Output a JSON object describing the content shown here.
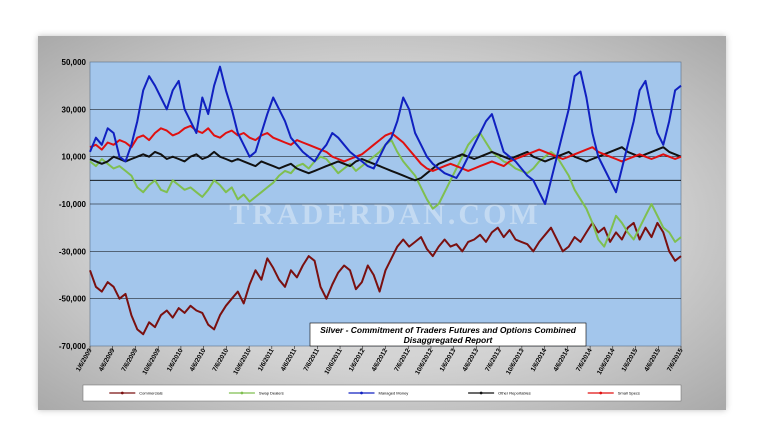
{
  "chart_data": {
    "type": "line",
    "title_line1": "Silver - Commitment of Traders Futures and Options Combined",
    "title_line2": "Disaggregated Report",
    "watermark": "TRADERDAN.COM",
    "ylim": [
      -70000,
      50000
    ],
    "y_ticks": [
      50000,
      30000,
      10000,
      -10000,
      -30000,
      -50000,
      -70000
    ],
    "y_tick_labels": [
      "50,000",
      "30,000",
      "10,000",
      "-10,000",
      "-30,000",
      "-50,000",
      "-70,000"
    ],
    "x_tick_labels": [
      "1/6/2009",
      "4/6/2009",
      "7/6/2009",
      "10/6/2009",
      "1/6/2010",
      "4/6/2010",
      "7/6/2010",
      "10/6/2010",
      "1/6/2011",
      "4/6/2011",
      "7/6/2011",
      "10/6/2011",
      "1/6/2012",
      "4/6/2012",
      "7/6/2012",
      "10/6/2012",
      "1/6/2013",
      "4/6/2013",
      "7/6/2013",
      "10/6/2013",
      "1/6/2014",
      "4/6/2014",
      "7/6/2014",
      "10/6/2014",
      "1/6/2015",
      "4/6/2015",
      "7/6/2015"
    ],
    "series": [
      {
        "name": "Commercials",
        "color": "#7a1010",
        "values": [
          -38000,
          -45000,
          -47000,
          -43000,
          -45000,
          -50000,
          -48000,
          -57000,
          -63000,
          -65000,
          -60000,
          -62000,
          -57000,
          -55000,
          -58000,
          -54000,
          -56000,
          -53000,
          -55000,
          -56000,
          -61000,
          -63000,
          -57000,
          -53000,
          -50000,
          -47000,
          -52000,
          -44000,
          -38000,
          -42000,
          -33000,
          -37000,
          -42000,
          -45000,
          -38000,
          -41000,
          -36000,
          -32000,
          -34000,
          -45000,
          -50000,
          -44000,
          -39000,
          -36000,
          -38000,
          -46000,
          -43000,
          -36000,
          -40000,
          -47000,
          -38000,
          -33000,
          -28000,
          -25000,
          -28000,
          -26000,
          -24000,
          -29000,
          -32000,
          -28000,
          -25000,
          -28000,
          -27000,
          -30000,
          -26000,
          -25000,
          -23000,
          -26000,
          -22000,
          -20000,
          -24000,
          -21000,
          -25000,
          -26000,
          -27000,
          -30000,
          -26000,
          -23000,
          -20000,
          -25000,
          -30000,
          -28000,
          -24000,
          -26000,
          -22000,
          -18000,
          -22000,
          -20000,
          -26000,
          -22000,
          -25000,
          -20000,
          -18000,
          -25000,
          -20000,
          -24000,
          -18000,
          -22000,
          -30000,
          -34000,
          -32000
        ]
      },
      {
        "name": "Swap Dealers",
        "color": "#7fbf50",
        "values": [
          8000,
          6000,
          9000,
          7000,
          5000,
          6000,
          4000,
          2000,
          -3000,
          -5000,
          -2000,
          0,
          -4000,
          -5000,
          0,
          -2000,
          -4000,
          -3000,
          -5000,
          -7000,
          -4000,
          0,
          -2000,
          -5000,
          -3000,
          -8000,
          -6000,
          -9000,
          -7000,
          -5000,
          -3000,
          -1000,
          2000,
          4000,
          3000,
          6000,
          7000,
          5000,
          8000,
          10000,
          9000,
          6000,
          3000,
          5000,
          7000,
          4000,
          6000,
          8000,
          10000,
          12000,
          15000,
          17000,
          12000,
          8000,
          5000,
          2000,
          -3000,
          -8000,
          -12000,
          -10000,
          -5000,
          0,
          5000,
          10000,
          15000,
          18000,
          20000,
          16000,
          12000,
          10000,
          8000,
          7000,
          5000,
          4000,
          3000,
          5000,
          8000,
          10000,
          12000,
          10000,
          6000,
          2000,
          -4000,
          -8000,
          -12000,
          -18000,
          -25000,
          -28000,
          -22000,
          -15000,
          -18000,
          -22000,
          -25000,
          -20000,
          -15000,
          -10000,
          -15000,
          -20000,
          -22000,
          -26000,
          -24000
        ]
      },
      {
        "name": "Managed Money",
        "color": "#1020c0",
        "values": [
          12000,
          18000,
          15000,
          22000,
          20000,
          10000,
          8000,
          15000,
          25000,
          38000,
          44000,
          40000,
          35000,
          30000,
          38000,
          42000,
          30000,
          25000,
          20000,
          35000,
          28000,
          40000,
          48000,
          38000,
          30000,
          20000,
          15000,
          10000,
          12000,
          20000,
          28000,
          35000,
          30000,
          25000,
          18000,
          15000,
          12000,
          10000,
          8000,
          12000,
          15000,
          20000,
          18000,
          15000,
          12000,
          10000,
          8000,
          6000,
          5000,
          10000,
          15000,
          18000,
          25000,
          35000,
          30000,
          20000,
          15000,
          10000,
          7000,
          5000,
          3000,
          2000,
          1000,
          5000,
          10000,
          15000,
          20000,
          25000,
          28000,
          20000,
          12000,
          10000,
          8000,
          5000,
          2000,
          0,
          -5000,
          -10000,
          0,
          10000,
          20000,
          30000,
          44000,
          46000,
          35000,
          20000,
          10000,
          5000,
          0,
          -5000,
          5000,
          15000,
          25000,
          38000,
          42000,
          30000,
          20000,
          15000,
          25000,
          38000,
          40000
        ]
      },
      {
        "name": "Other Reportables",
        "color": "#111111",
        "values": [
          9000,
          8000,
          7000,
          8000,
          10000,
          9000,
          8000,
          9000,
          10000,
          11000,
          10000,
          12000,
          11000,
          9000,
          10000,
          9000,
          8000,
          10000,
          11000,
          9000,
          10000,
          12000,
          10000,
          9000,
          8000,
          9000,
          8000,
          7000,
          6000,
          8000,
          7000,
          6000,
          5000,
          6000,
          7000,
          5000,
          4000,
          3000,
          4000,
          5000,
          6000,
          7000,
          8000,
          7000,
          6000,
          8000,
          9000,
          8000,
          7000,
          6000,
          5000,
          4000,
          3000,
          2000,
          1000,
          0,
          1000,
          3000,
          5000,
          7000,
          8000,
          9000,
          10000,
          11000,
          10000,
          9000,
          10000,
          11000,
          12000,
          11000,
          10000,
          9000,
          10000,
          11000,
          12000,
          10000,
          9000,
          8000,
          9000,
          10000,
          11000,
          12000,
          10000,
          9000,
          8000,
          9000,
          10000,
          11000,
          12000,
          13000,
          14000,
          12000,
          11000,
          10000,
          11000,
          12000,
          13000,
          14000,
          12000,
          11000,
          10000
        ]
      },
      {
        "name": "Small Specs",
        "color": "#e01010",
        "values": [
          14000,
          15000,
          13000,
          16000,
          15000,
          17000,
          16000,
          14000,
          18000,
          19000,
          17000,
          20000,
          22000,
          21000,
          19000,
          20000,
          22000,
          23000,
          21000,
          20000,
          22000,
          19000,
          18000,
          20000,
          21000,
          19000,
          20000,
          18000,
          17000,
          19000,
          20000,
          18000,
          17000,
          16000,
          15000,
          17000,
          16000,
          15000,
          14000,
          13000,
          12000,
          10000,
          9000,
          8000,
          9000,
          10000,
          11000,
          13000,
          15000,
          17000,
          19000,
          20000,
          18000,
          16000,
          13000,
          10000,
          7000,
          5000,
          4000,
          5000,
          6000,
          7000,
          6000,
          5000,
          4000,
          5000,
          6000,
          7000,
          8000,
          7000,
          6000,
          8000,
          9000,
          10000,
          11000,
          12000,
          13000,
          12000,
          11000,
          10000,
          9000,
          10000,
          11000,
          12000,
          13000,
          14000,
          12000,
          11000,
          10000,
          9000,
          8000,
          9000,
          10000,
          11000,
          10000,
          9000,
          10000,
          11000,
          10000,
          9000,
          10000
        ]
      }
    ]
  }
}
